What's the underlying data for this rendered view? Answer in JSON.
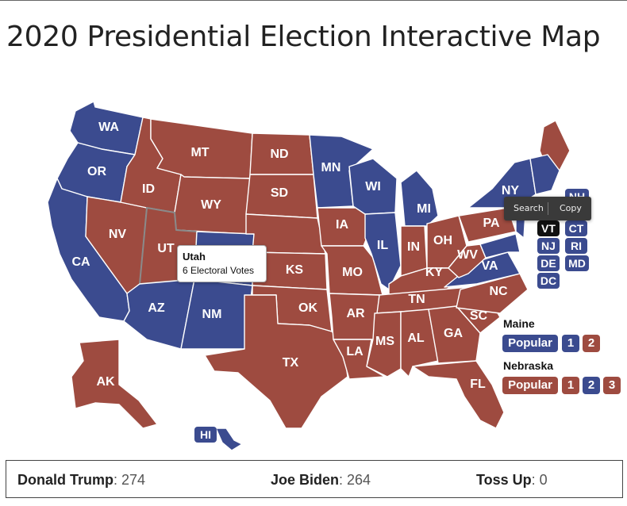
{
  "page": {
    "title": "2020 Presidential Election Interactive Map"
  },
  "colors": {
    "republican": "#9e4b40",
    "democrat": "#3b4b8f",
    "selected": "#111111"
  },
  "map": {
    "states": [
      {
        "id": "WA",
        "winner": "democrat"
      },
      {
        "id": "OR",
        "winner": "democrat"
      },
      {
        "id": "CA",
        "winner": "democrat"
      },
      {
        "id": "NV",
        "winner": "republican"
      },
      {
        "id": "ID",
        "winner": "republican"
      },
      {
        "id": "MT",
        "winner": "republican"
      },
      {
        "id": "WY",
        "winner": "republican"
      },
      {
        "id": "UT",
        "winner": "republican"
      },
      {
        "id": "AZ",
        "winner": "democrat"
      },
      {
        "id": "CO",
        "winner": "democrat"
      },
      {
        "id": "NM",
        "winner": "democrat"
      },
      {
        "id": "ND",
        "winner": "republican"
      },
      {
        "id": "SD",
        "winner": "republican"
      },
      {
        "id": "NE",
        "winner": "republican"
      },
      {
        "id": "KS",
        "winner": "republican"
      },
      {
        "id": "OK",
        "winner": "republican"
      },
      {
        "id": "TX",
        "winner": "republican"
      },
      {
        "id": "MN",
        "winner": "democrat"
      },
      {
        "id": "IA",
        "winner": "republican"
      },
      {
        "id": "MO",
        "winner": "republican"
      },
      {
        "id": "AR",
        "winner": "republican"
      },
      {
        "id": "LA",
        "winner": "republican"
      },
      {
        "id": "WI",
        "winner": "democrat"
      },
      {
        "id": "IL",
        "winner": "democrat"
      },
      {
        "id": "MI",
        "winner": "democrat"
      },
      {
        "id": "IN",
        "winner": "republican"
      },
      {
        "id": "OH",
        "winner": "republican"
      },
      {
        "id": "KY",
        "winner": "republican"
      },
      {
        "id": "TN",
        "winner": "republican"
      },
      {
        "id": "MS",
        "winner": "republican"
      },
      {
        "id": "AL",
        "winner": "republican"
      },
      {
        "id": "GA",
        "winner": "republican"
      },
      {
        "id": "FL",
        "winner": "republican"
      },
      {
        "id": "SC",
        "winner": "republican"
      },
      {
        "id": "NC",
        "winner": "republican"
      },
      {
        "id": "VA",
        "winner": "democrat"
      },
      {
        "id": "WV",
        "winner": "republican"
      },
      {
        "id": "PA",
        "winner": "republican"
      },
      {
        "id": "NY",
        "winner": "democrat"
      },
      {
        "id": "ME",
        "winner": "republican"
      },
      {
        "id": "AK",
        "winner": "republican"
      },
      {
        "id": "HI",
        "winner": "democrat"
      }
    ],
    "small_states": [
      {
        "id": "NH",
        "label": "NH",
        "winner": "democrat"
      },
      {
        "id": "VT",
        "label": "VT",
        "winner": "selected"
      },
      {
        "id": "CT",
        "label": "CT",
        "winner": "democrat"
      },
      {
        "id": "NJ",
        "label": "NJ",
        "winner": "democrat"
      },
      {
        "id": "RI",
        "label": "RI",
        "winner": "democrat"
      },
      {
        "id": "DE",
        "label": "DE",
        "winner": "democrat"
      },
      {
        "id": "MD",
        "label": "MD",
        "winner": "democrat"
      },
      {
        "id": "DC",
        "label": "DC",
        "winner": "democrat"
      }
    ]
  },
  "tooltip": {
    "state": "Utah",
    "votes": "6 Electoral Votes"
  },
  "context_menu": {
    "search": "Search",
    "copy": "Copy"
  },
  "split_states": {
    "maine": {
      "title": "Maine",
      "popular": "Popular",
      "districts": [
        "1",
        "2"
      ]
    },
    "nebraska": {
      "title": "Nebraska",
      "popular": "Popular",
      "districts": [
        "1",
        "2",
        "3"
      ]
    }
  },
  "tally": {
    "trump_label": "Donald Trump",
    "trump_votes": ": 274",
    "biden_label": "Joe Biden",
    "biden_votes": ": 264",
    "toss_label": "Toss Up",
    "toss_votes": ": 0"
  }
}
